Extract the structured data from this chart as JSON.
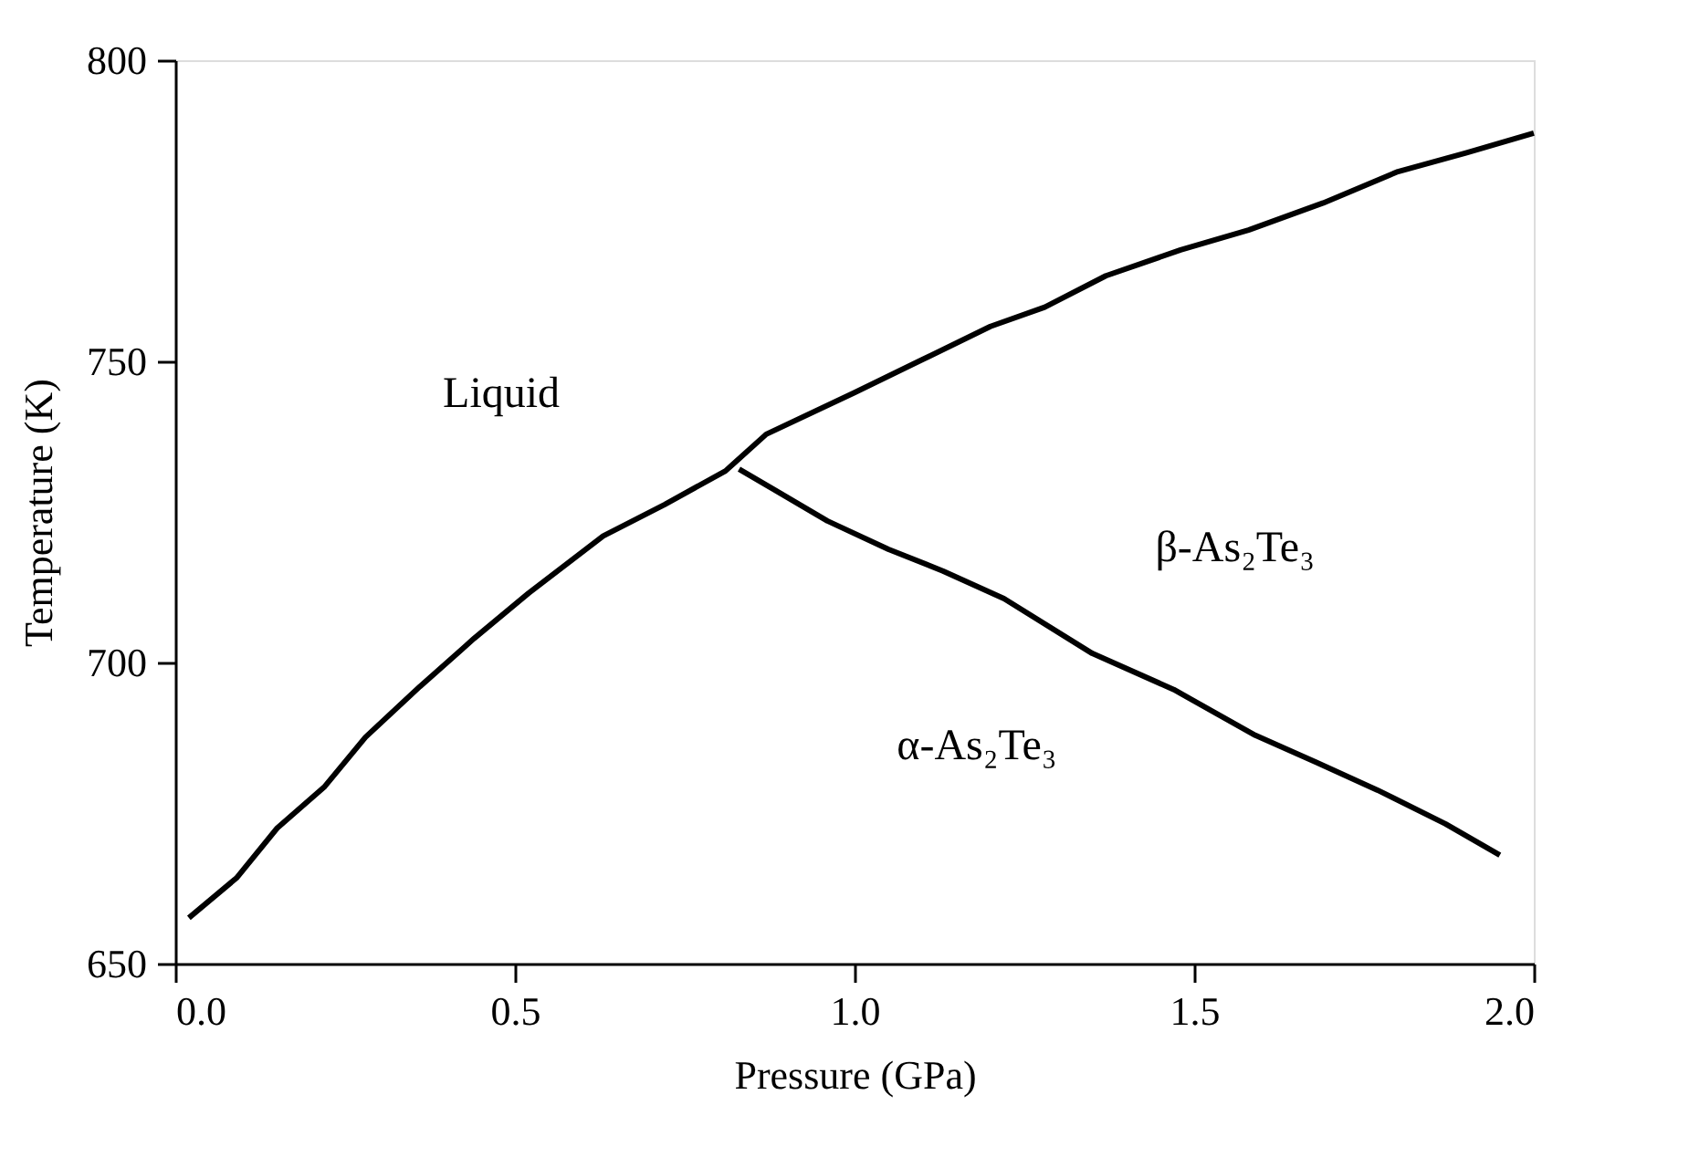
{
  "chart_data": {
    "type": "line",
    "xlabel": "Pressure (GPa)",
    "ylabel": "Temperature (K)",
    "xlim": [
      0,
      2
    ],
    "ylim": [
      650,
      800
    ],
    "xticks": [
      {
        "value": 0,
        "label": "0.0"
      },
      0.5,
      {
        "value": 1,
        "label": "1.0"
      },
      1.5,
      {
        "value": 2,
        "label": "2.0"
      }
    ],
    "yticks": [
      650,
      700,
      750,
      800
    ],
    "grid": false,
    "legend": false,
    "marker": "none",
    "line_style": "solid",
    "series": [
      {
        "color": "#000000",
        "x": [
          0.02,
          0.09,
          0.15,
          0.22,
          0.28,
          0.36,
          0.44,
          0.52,
          0.63,
          0.72,
          0.81,
          0.87,
          1.0,
          1.1,
          1.2,
          1.28,
          1.37,
          1.48,
          1.58,
          1.69,
          1.8,
          1.9,
          2.0
        ],
        "values": [
          657.6,
          664.2,
          672.5,
          679.4,
          687.6,
          696,
          704,
          711.5,
          721,
          726.2,
          731.8,
          737.9,
          744.8,
          750.3,
          755.8,
          759,
          764.2,
          768.5,
          771.8,
          776.3,
          781.5,
          784.6,
          787.9
        ]
      },
      {
        "color": "#000000",
        "x": [
          0.83,
          0.88,
          0.96,
          1.05,
          1.13,
          1.22,
          1.35,
          1.47,
          1.59,
          1.68,
          1.77,
          1.87,
          1.95
        ],
        "values": [
          732.1,
          728.8,
          723.5,
          718.8,
          715.2,
          710.6,
          701.5,
          695.5,
          687.9,
          683.4,
          678.8,
          673.2,
          668
        ]
      }
    ],
    "annotations": [
      "Liquid",
      "β-As₂Te₃",
      "α-As₂Te₃"
    ]
  }
}
